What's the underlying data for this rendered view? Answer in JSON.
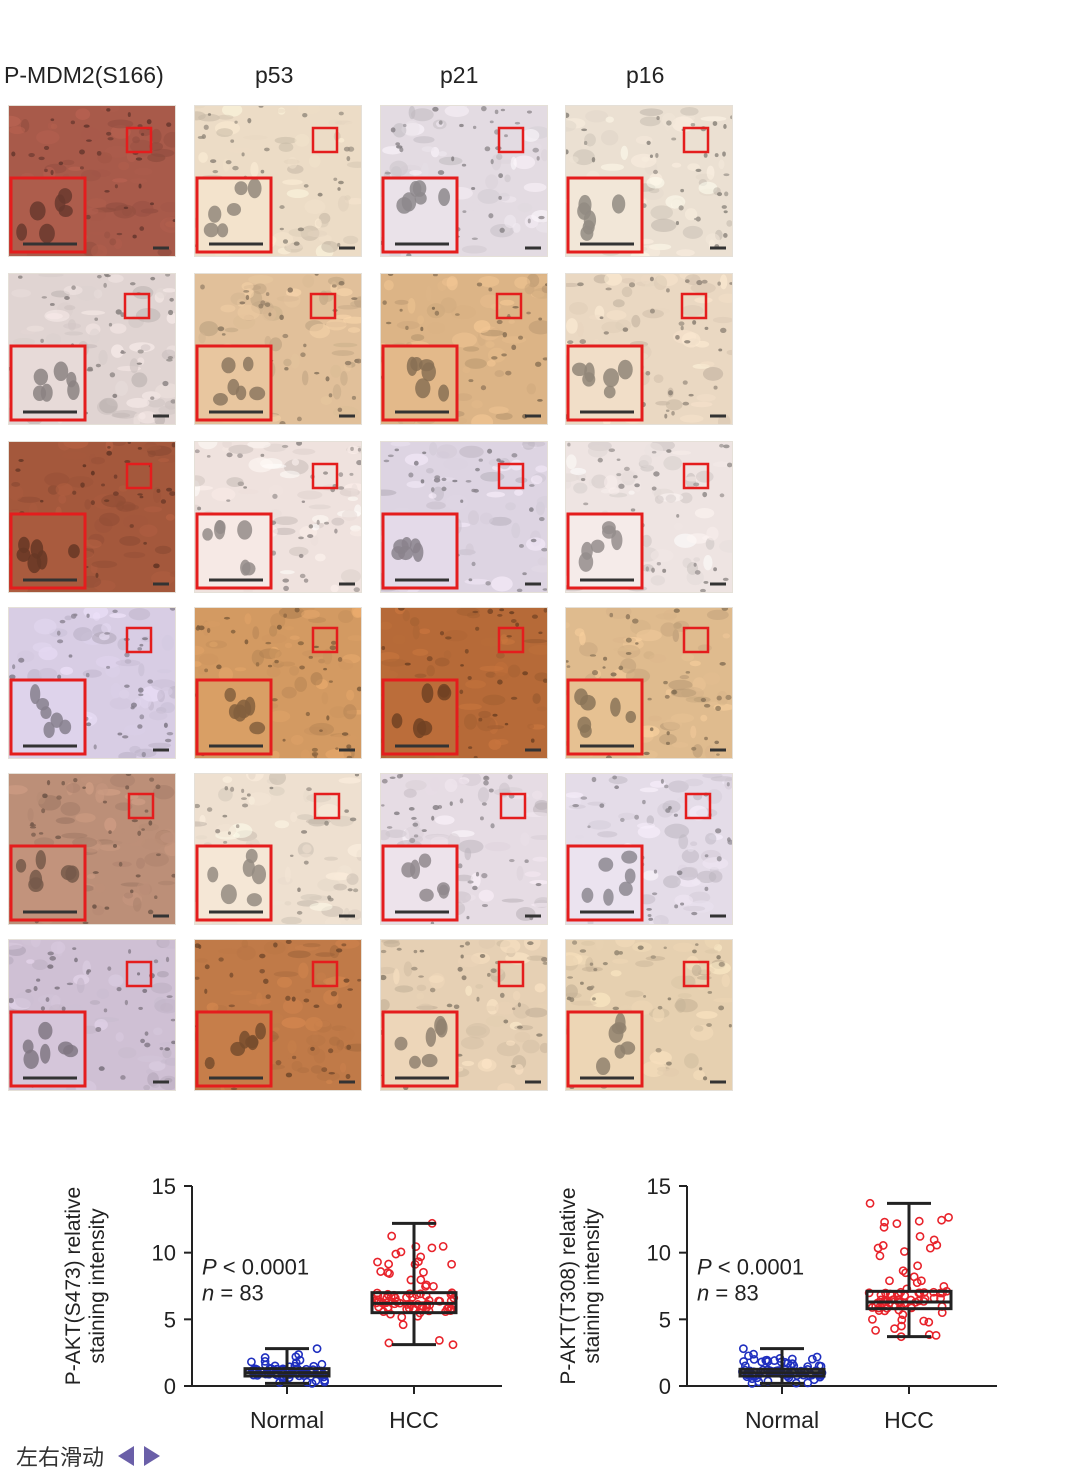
{
  "figure": {
    "columns": [
      "P-MDM2(S166)",
      "p53",
      "p21",
      "p16"
    ],
    "panels": [
      [
        "#a85a4a",
        "#ecdcc6",
        "#e3dbe2",
        "#ebe0d2"
      ],
      [
        "#e0d4d2",
        "#e1c09a",
        "#dcb486",
        "#ead8c2"
      ],
      [
        "#a4583c",
        "#efe2de",
        "#ddd4e2",
        "#eee4e2"
      ],
      [
        "#d8cde4",
        "#d39a62",
        "#b66a38",
        "#dfbb8e"
      ],
      [
        "#bc8f78",
        "#eee0d0",
        "#e6dce4",
        "#e4dce8"
      ],
      [
        "#cfc0d4",
        "#c07a48",
        "#e6d0b4",
        "#e6d0b0"
      ]
    ]
  },
  "chart_data": [
    {
      "type": "box",
      "ylabel": [
        "P-AKT(S473) relative",
        "staining intensity"
      ],
      "categories": [
        "Normal",
        "HCC"
      ],
      "ylim": [
        0,
        15
      ],
      "yticks": [
        0,
        5,
        10,
        15
      ],
      "annotation": {
        "p": "< 0.0001",
        "n": "= 83"
      },
      "series": [
        {
          "category": "Normal",
          "color": "#1f2fbf",
          "min": 0.2,
          "q1": 0.75,
          "median": 1.0,
          "q3": 1.3,
          "max": 2.8
        },
        {
          "category": "HCC",
          "color": "#e8232b",
          "min": 3.1,
          "q1": 5.5,
          "median": 6.2,
          "q3": 7.0,
          "max": 12.2
        }
      ]
    },
    {
      "type": "box",
      "ylabel": [
        "P-AKT(T308) relative",
        "staining intensity"
      ],
      "categories": [
        "Normal",
        "HCC"
      ],
      "ylim": [
        0,
        15
      ],
      "yticks": [
        0,
        5,
        10,
        15
      ],
      "annotation": {
        "p": "< 0.0001",
        "n": "= 83"
      },
      "series": [
        {
          "category": "Normal",
          "color": "#1f2fbf",
          "min": 0.2,
          "q1": 0.75,
          "median": 1.0,
          "q3": 1.25,
          "max": 2.8
        },
        {
          "category": "HCC",
          "color": "#e8232b",
          "min": 3.7,
          "q1": 5.8,
          "median": 6.3,
          "q3": 7.1,
          "max": 13.7
        }
      ]
    }
  ],
  "footer": {
    "label": "左右滑动"
  }
}
